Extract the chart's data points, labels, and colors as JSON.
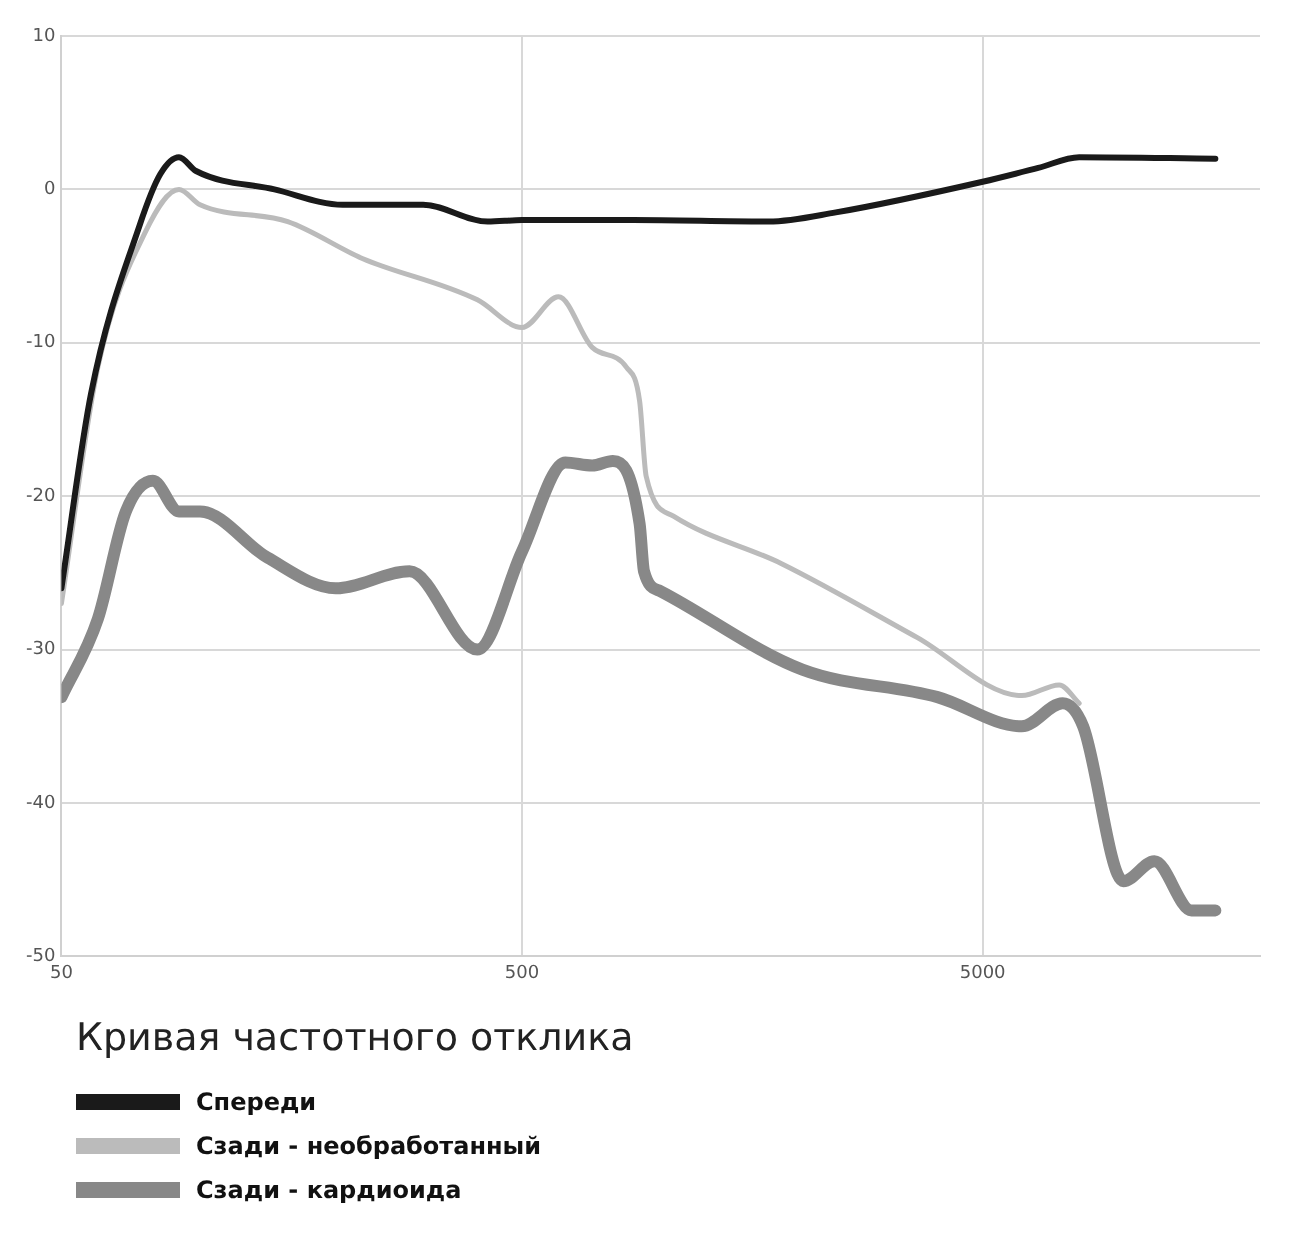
{
  "chart_data": {
    "type": "line",
    "title": "Кривая частотного отклика",
    "log": "x",
    "grid": true,
    "legend": "bottom",
    "marker": "none",
    "line_style": "solid",
    "xlim": [
      50,
      20000
    ],
    "xticks": [
      50,
      500,
      5000
    ],
    "ylim": [
      -50,
      10
    ],
    "yticks": [
      -50,
      -40,
      -30,
      -20,
      -10,
      0,
      10
    ],
    "series": [
      {
        "name": "Спереди",
        "color": "#1a1a1a",
        "x": [
          50,
          58,
          74,
          82,
          90,
          98,
          145,
          204,
          305,
          421,
          500,
          870,
          1714,
          2400,
          5000,
          6600,
          8100,
          16000
        ],
        "values": [
          -26,
          -13.3,
          -2.3,
          1,
          2.1,
          1.2,
          0,
          -1,
          -1,
          -2.1,
          -2,
          -2,
          -2.1,
          -1.5,
          0.5,
          1.4,
          2.1,
          2
        ]
      },
      {
        "name": "Сзади - необработанный",
        "color": "#bbbbbb",
        "x": [
          50,
          60,
          76,
          90,
          100,
          155,
          225,
          400,
          500,
          600,
          710,
          843,
          900,
          930,
          1066,
          1830,
          3600,
          6080,
          7330,
          8100
        ],
        "values": [
          -27,
          -11.6,
          -2.8,
          0,
          -1,
          -2.1,
          -4.5,
          -7.2,
          -9,
          -7,
          -10.3,
          -11.6,
          -13.8,
          -18.7,
          -21.3,
          -24.4,
          -29.2,
          -33,
          -32.3,
          -33.5
        ]
      },
      {
        "name": "Сзади - кардиоида",
        "color": "#888888",
        "x": [
          50,
          60,
          69,
          79,
          90,
          100,
          140,
          197,
          285,
          400,
          500,
          621,
          710,
          787,
          900,
          920,
          1000,
          2030,
          3990,
          6080,
          7460,
          8260,
          10100,
          11800,
          14200,
          16000
        ],
        "values": [
          -33.1,
          -28,
          -21,
          -19,
          -21,
          -21,
          -24,
          -26,
          -24.9,
          -30,
          -23.6,
          -17.8,
          -18,
          -17.7,
          -21.8,
          -24.9,
          -26.2,
          -31.3,
          -33.1,
          -35,
          -33.5,
          -35,
          -45.1,
          -43.8,
          -47,
          -47
        ]
      }
    ]
  }
}
